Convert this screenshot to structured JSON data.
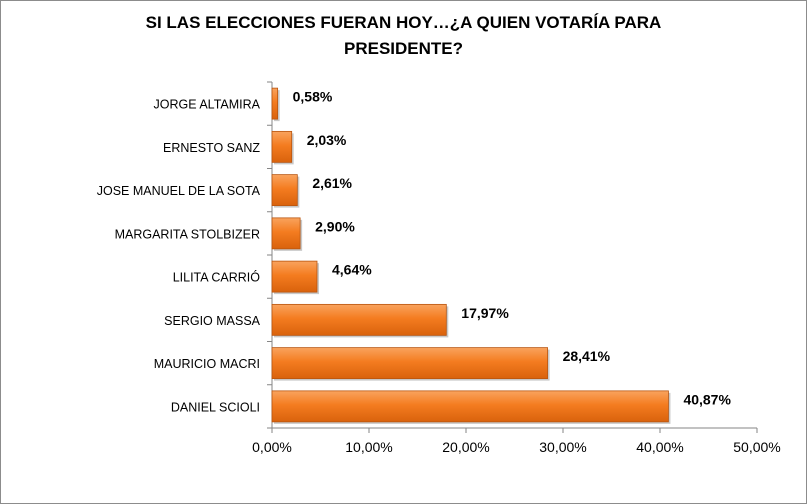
{
  "chart_data": {
    "type": "bar",
    "orientation": "horizontal",
    "title_line1": "SI LAS ELECCIONES FUERAN HOY…¿A QUIEN VOTARÍA PARA",
    "title_line2": "PRESIDENTE?",
    "categories": [
      "JORGE ALTAMIRA",
      "ERNESTO SANZ",
      "JOSE MANUEL DE LA SOTA",
      "MARGARITA STOLBIZER",
      "LILITA CARRIÓ",
      "SERGIO MASSA",
      "MAURICIO MACRI",
      "DANIEL SCIOLI"
    ],
    "values": [
      0.58,
      2.03,
      2.61,
      2.9,
      4.64,
      17.97,
      28.41,
      40.87
    ],
    "data_labels": [
      "0,58%",
      "2,03%",
      "2,61%",
      "2,90%",
      "4,64%",
      "17,97%",
      "28,41%",
      "40,87%"
    ],
    "xlim": [
      0,
      50
    ],
    "x_ticks": [
      0,
      10,
      20,
      30,
      40,
      50
    ],
    "x_tick_labels": [
      "0,00%",
      "10,00%",
      "20,00%",
      "30,00%",
      "40,00%",
      "50,00%"
    ],
    "grid": false,
    "legend": "none",
    "bar_color": "#f47c20"
  }
}
